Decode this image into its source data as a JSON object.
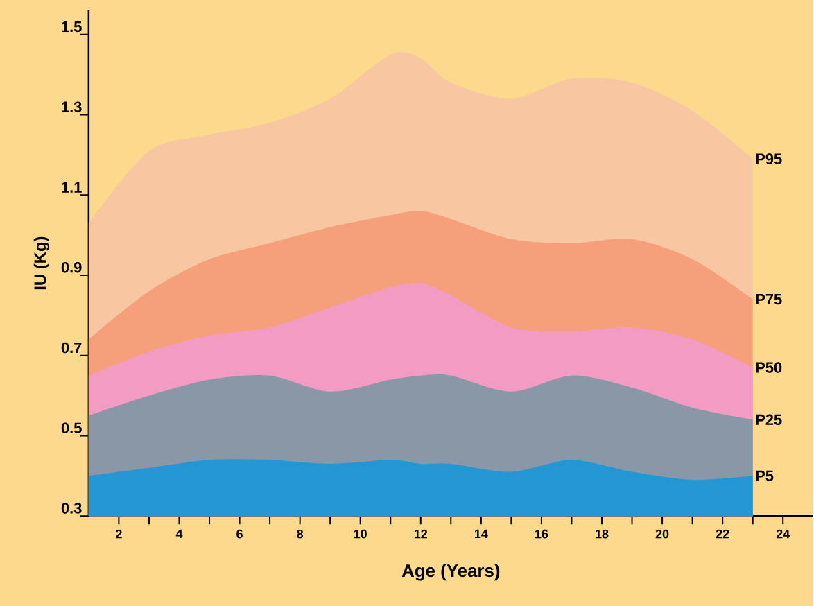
{
  "chart_data": {
    "type": "area",
    "xlabel": "Age (Years)",
    "ylabel": "IU (Kg)",
    "x": [
      1,
      3,
      5,
      7,
      9,
      11,
      12,
      13,
      15,
      17,
      19,
      21,
      23
    ],
    "series": [
      {
        "name": "P95",
        "color": "#f8c6a0",
        "values": [
          1.03,
          1.21,
          1.25,
          1.28,
          1.34,
          1.45,
          1.44,
          1.38,
          1.34,
          1.39,
          1.38,
          1.31,
          1.19
        ]
      },
      {
        "name": "P75",
        "color": "#f5a07a",
        "values": [
          0.74,
          0.86,
          0.94,
          0.98,
          1.02,
          1.05,
          1.06,
          1.04,
          0.99,
          0.98,
          0.99,
          0.94,
          0.84
        ]
      },
      {
        "name": "P50",
        "color": "#f29cc4",
        "values": [
          0.65,
          0.71,
          0.75,
          0.77,
          0.82,
          0.87,
          0.88,
          0.85,
          0.77,
          0.76,
          0.77,
          0.74,
          0.67
        ]
      },
      {
        "name": "P25",
        "color": "#8a97a6",
        "values": [
          0.55,
          0.6,
          0.64,
          0.65,
          0.61,
          0.64,
          0.65,
          0.65,
          0.61,
          0.65,
          0.62,
          0.57,
          0.54
        ]
      },
      {
        "name": "P5",
        "color": "#2496d4",
        "values": [
          0.4,
          0.42,
          0.44,
          0.44,
          0.43,
          0.44,
          0.43,
          0.43,
          0.41,
          0.44,
          0.41,
          0.39,
          0.4
        ]
      }
    ],
    "xlim": [
      1,
      25
    ],
    "ylim": [
      0.3,
      1.56
    ],
    "xticks": [
      2,
      {
        "value": 3,
        "label": null
      },
      4,
      {
        "value": 5,
        "label": null
      },
      6,
      {
        "value": 7,
        "label": null
      },
      8,
      {
        "value": 9,
        "label": null
      },
      10,
      {
        "value": 11,
        "label": null
      },
      12,
      {
        "value": 13,
        "label": null
      },
      14,
      {
        "value": 15,
        "label": null
      },
      16,
      {
        "value": 17,
        "label": null
      },
      18,
      {
        "value": 19,
        "label": null
      },
      20,
      {
        "value": 21,
        "label": null
      },
      22,
      {
        "value": 23,
        "label": null
      },
      24
    ],
    "yticks": [
      0.3,
      0.5,
      0.7,
      0.9,
      1.1,
      1.3,
      1.5
    ]
  }
}
